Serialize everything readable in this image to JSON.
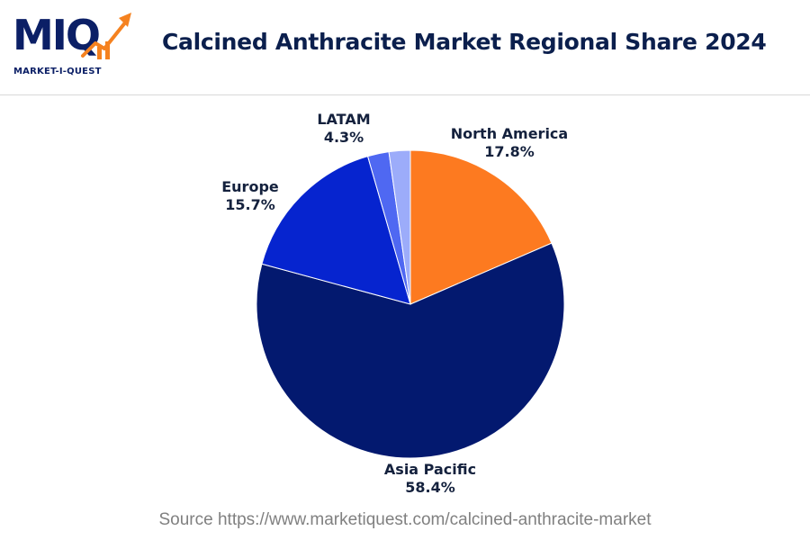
{
  "header": {
    "logo_letters": "MIQ",
    "logo_tagline": "MARKET-I-QUEST",
    "title": "Calcined Anthracite Market Regional Share 2024"
  },
  "colors": {
    "navy": "#0b1f66",
    "north_america": "#fd7a20",
    "asia_pacific": "#03196f",
    "europe": "#0624cf",
    "latam_a": "#4f68f2",
    "latam_b": "#9cacfa"
  },
  "chart_data": {
    "type": "pie",
    "title": "Calcined Anthracite Market Regional Share 2024",
    "unit": "%",
    "slices": [
      {
        "name": "North America",
        "value": 17.8,
        "label": "17.8%",
        "color": "#fd7a20"
      },
      {
        "name": "Asia Pacific",
        "value": 58.4,
        "label": "58.4%",
        "color": "#03196f"
      },
      {
        "name": "Europe",
        "value": 15.7,
        "label": "15.7%",
        "color": "#0624cf"
      },
      {
        "name": "LATAM",
        "value": 4.3,
        "label": "4.3%",
        "color": [
          "#4f68f2",
          "#9cacfa"
        ]
      }
    ],
    "legend": "none"
  },
  "footer": {
    "source": "Source https://www.marketiquest.com/calcined-anthracite-market"
  }
}
